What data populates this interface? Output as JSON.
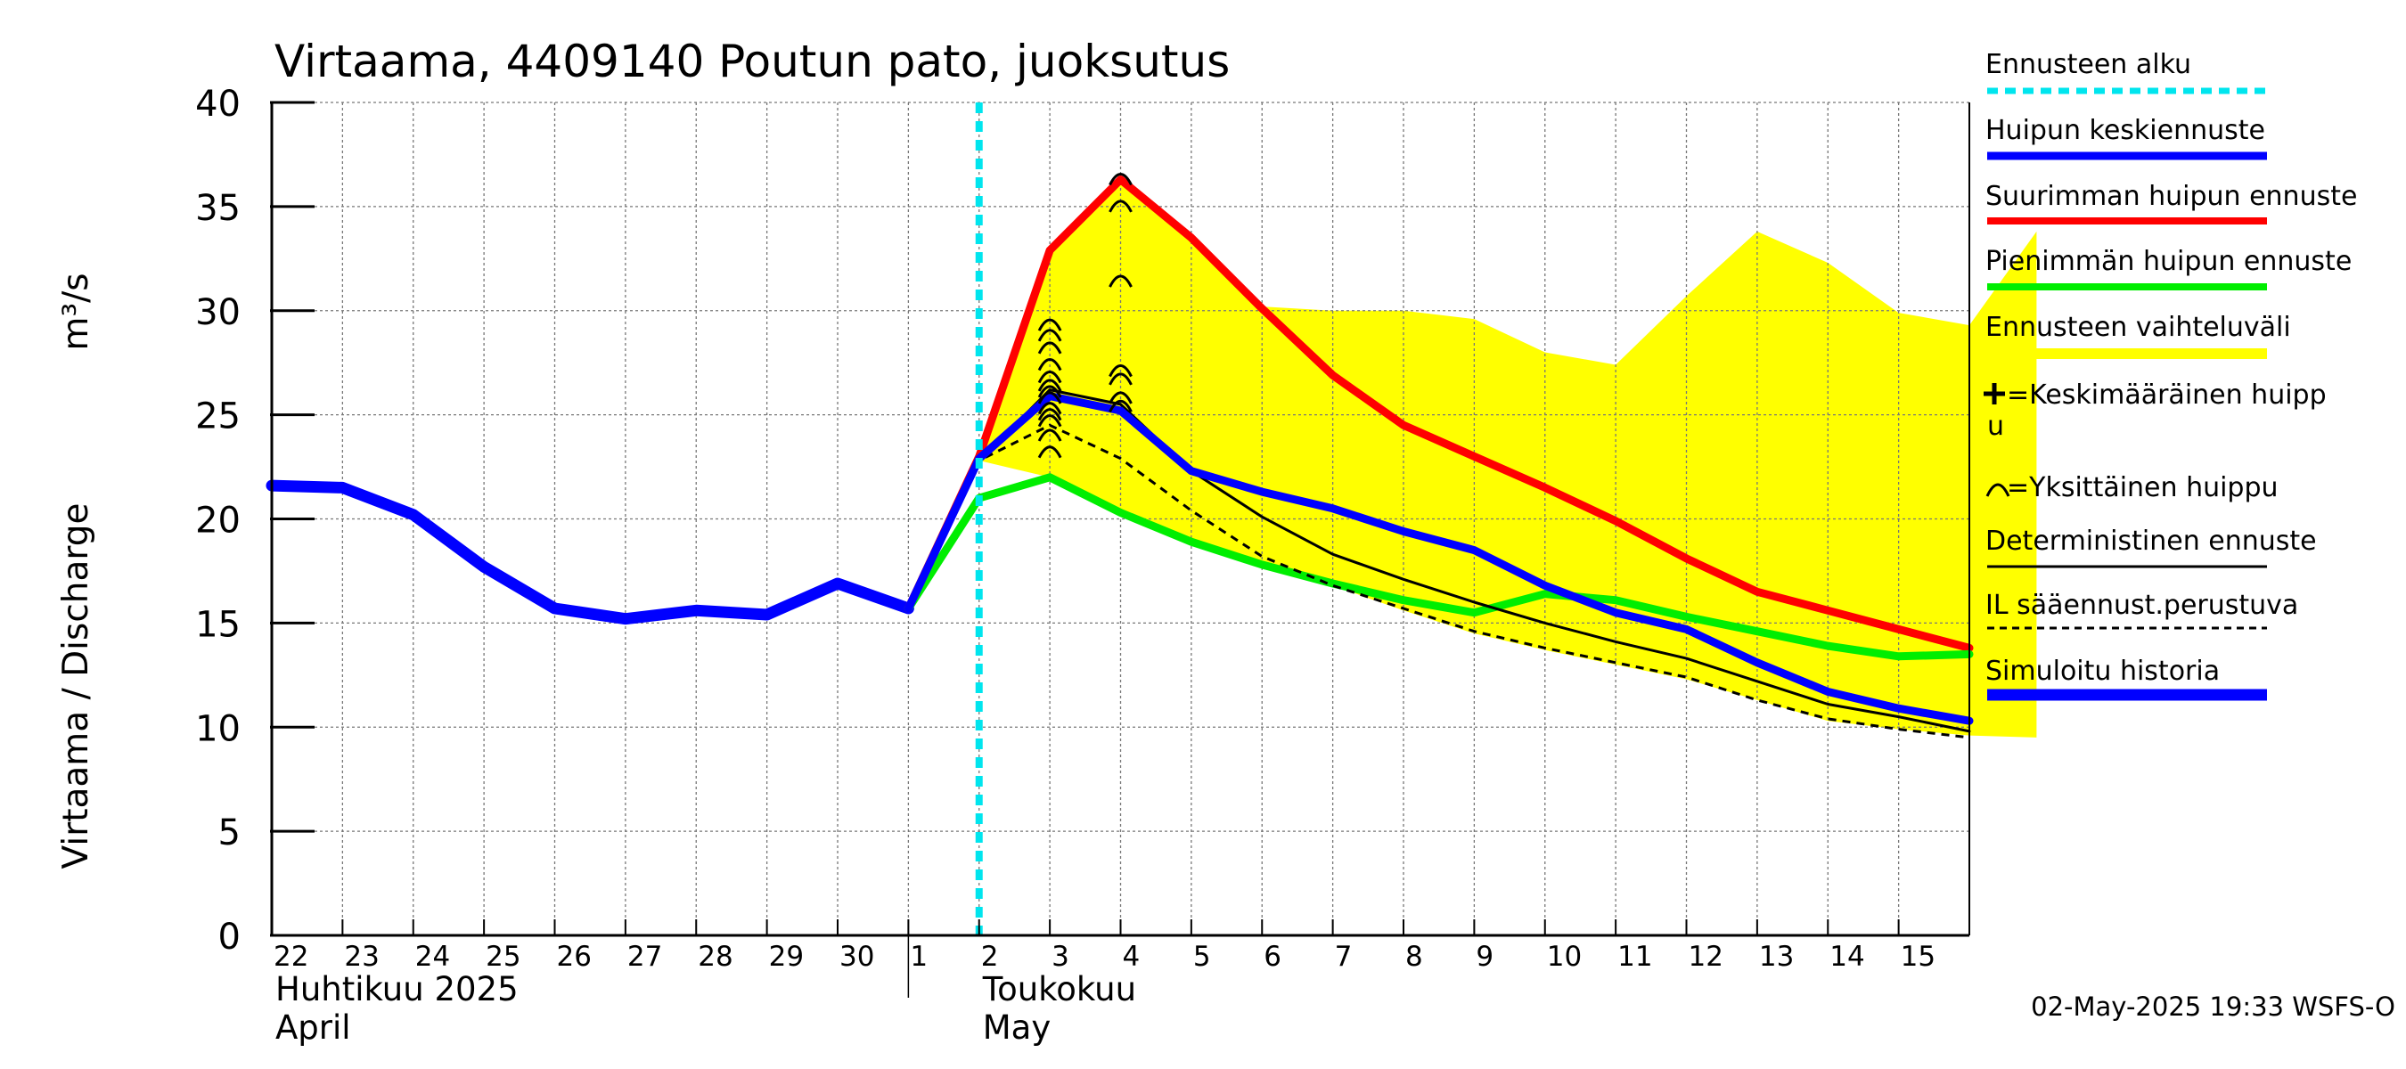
{
  "chart_data": {
    "type": "line",
    "title": "Virtaama, 4409140 Poutun pato, juoksutus",
    "ylabel": "Virtaama / Discharge",
    "yunit": "m³/s",
    "ylim": [
      0,
      40
    ],
    "yticks": [
      0,
      5,
      10,
      15,
      20,
      25,
      30,
      35,
      40
    ],
    "xlim": [
      0,
      24
    ],
    "grid": true,
    "day_labels": [
      "22",
      "23",
      "24",
      "25",
      "26",
      "27",
      "28",
      "29",
      "30",
      "1",
      "2",
      "3",
      "4",
      "5",
      "6",
      "7",
      "8",
      "9",
      "10",
      "11",
      "12",
      "13",
      "14",
      "15"
    ],
    "month_labels": [
      {
        "fi": "Huhtikuu  2025",
        "en": "April",
        "x": 0
      },
      {
        "fi": "Toukokuu",
        "en": "May",
        "x": 10
      }
    ],
    "forecast_start_x": 10.0,
    "band": {
      "name": "Ennusteen vaihteluväli",
      "color": "#ffff00",
      "upper": [
        [
          10,
          22.8
        ],
        [
          11,
          32.9
        ],
        [
          12,
          36.3
        ],
        [
          13,
          33.6
        ],
        [
          14,
          30.2
        ],
        [
          15,
          30.0
        ],
        [
          16,
          30.0
        ],
        [
          17,
          29.6
        ],
        [
          18,
          28.0
        ],
        [
          19,
          27.4
        ],
        [
          20,
          30.7
        ],
        [
          21,
          33.8
        ],
        [
          22,
          32.3
        ],
        [
          23,
          29.9
        ],
        [
          24,
          29.3
        ],
        [
          24.95,
          33.8
        ]
      ],
      "lower": [
        [
          10,
          22.8
        ],
        [
          11,
          22.0
        ],
        [
          12,
          20.2
        ],
        [
          13,
          18.8
        ],
        [
          14,
          17.8
        ],
        [
          15,
          16.8
        ],
        [
          16,
          15.6
        ],
        [
          17,
          14.5
        ],
        [
          18,
          13.7
        ],
        [
          19,
          13.0
        ],
        [
          20,
          12.3
        ],
        [
          21,
          11.3
        ],
        [
          22,
          10.3
        ],
        [
          23,
          9.9
        ],
        [
          24,
          9.6
        ],
        [
          24.95,
          9.5
        ]
      ]
    },
    "series": [
      {
        "name": "Simuloitu historia",
        "color": "#0000ff",
        "width": 13,
        "points": [
          [
            0,
            21.6
          ],
          [
            1,
            21.5
          ],
          [
            2,
            20.2
          ],
          [
            3,
            17.7
          ],
          [
            4,
            15.7
          ],
          [
            5,
            15.2
          ],
          [
            6,
            15.6
          ],
          [
            7,
            15.4
          ],
          [
            8,
            16.9
          ],
          [
            9,
            15.7
          ]
        ]
      },
      {
        "name": "Suurimman huipun ennuste",
        "color": "#ff0000",
        "width": 9,
        "points": [
          [
            9,
            15.7
          ],
          [
            10,
            23.0
          ],
          [
            11,
            32.9
          ],
          [
            12,
            36.3
          ],
          [
            13,
            33.5
          ],
          [
            14,
            30.1
          ],
          [
            15,
            26.9
          ],
          [
            16,
            24.5
          ],
          [
            17,
            23.0
          ],
          [
            18,
            21.5
          ],
          [
            19,
            19.9
          ],
          [
            20,
            18.1
          ],
          [
            21,
            16.5
          ],
          [
            22,
            15.6
          ],
          [
            23,
            14.7
          ],
          [
            24,
            13.8
          ]
        ]
      },
      {
        "name": "Pienimmän huipun ennuste",
        "color": "#00ee00",
        "width": 9,
        "points": [
          [
            9,
            15.7
          ],
          [
            10,
            21.0
          ],
          [
            11,
            22.0
          ],
          [
            12,
            20.3
          ],
          [
            13,
            18.9
          ],
          [
            14,
            17.8
          ],
          [
            15,
            16.9
          ],
          [
            16,
            16.1
          ],
          [
            17,
            15.5
          ],
          [
            18,
            16.4
          ],
          [
            19,
            16.1
          ],
          [
            20,
            15.3
          ],
          [
            21,
            14.6
          ],
          [
            22,
            13.9
          ],
          [
            23,
            13.4
          ],
          [
            24,
            13.5
          ]
        ]
      },
      {
        "name": "IL sääennust.perustuva",
        "color": "#000000",
        "width": 3,
        "dash": "9,7",
        "points": [
          [
            9,
            15.7
          ],
          [
            10,
            22.8
          ],
          [
            11,
            24.5
          ],
          [
            12,
            22.9
          ],
          [
            13,
            20.4
          ],
          [
            14,
            18.2
          ],
          [
            15,
            16.8
          ],
          [
            16,
            15.7
          ],
          [
            17,
            14.6
          ],
          [
            18,
            13.8
          ],
          [
            19,
            13.1
          ],
          [
            20,
            12.4
          ],
          [
            21,
            11.3
          ],
          [
            22,
            10.4
          ],
          [
            23,
            9.9
          ],
          [
            24,
            9.5
          ]
        ]
      },
      {
        "name": "Deterministinen ennuste",
        "color": "#000000",
        "width": 3,
        "points": [
          [
            9,
            15.7
          ],
          [
            10,
            22.8
          ],
          [
            11,
            26.2
          ],
          [
            12,
            25.5
          ],
          [
            13,
            22.3
          ],
          [
            14,
            20.1
          ],
          [
            15,
            18.3
          ],
          [
            16,
            17.1
          ],
          [
            17,
            16.0
          ],
          [
            18,
            15.0
          ],
          [
            19,
            14.1
          ],
          [
            20,
            13.3
          ],
          [
            21,
            12.2
          ],
          [
            22,
            11.1
          ],
          [
            23,
            10.5
          ],
          [
            24,
            9.8
          ]
        ]
      },
      {
        "name": "Huipun keskiennuste",
        "color": "#0000ff",
        "width": 9,
        "points": [
          [
            9,
            15.7
          ],
          [
            10,
            22.9
          ],
          [
            11,
            25.9
          ],
          [
            12,
            25.2
          ],
          [
            13,
            22.3
          ],
          [
            14,
            21.3
          ],
          [
            15,
            20.5
          ],
          [
            16,
            19.4
          ],
          [
            17,
            18.5
          ],
          [
            18,
            16.8
          ],
          [
            19,
            15.5
          ],
          [
            20,
            14.7
          ],
          [
            21,
            13.1
          ],
          [
            22,
            11.7
          ],
          [
            23,
            10.9
          ],
          [
            24,
            10.3
          ]
        ]
      }
    ],
    "peaks": [
      {
        "x": 11,
        "values": [
          23.2,
          24.0,
          24.7,
          25.0,
          25.3,
          25.8,
          26.1,
          26.4,
          26.8,
          27.4,
          28.2,
          28.8,
          29.3
        ]
      },
      {
        "x": 12,
        "values": [
          25.4,
          25.8,
          26.7,
          27.1,
          31.4,
          35.0,
          36.3
        ]
      }
    ],
    "legend": {
      "position": "right",
      "items": [
        {
          "label": "Ennusteen alku",
          "color": "#00e5ee",
          "style": "dotted",
          "width": 7
        },
        {
          "label": "Huipun keskiennuste",
          "color": "#0000ff",
          "style": "solid",
          "width": 9
        },
        {
          "label": "Suurimman huipun ennuste",
          "color": "#ff0000",
          "style": "solid",
          "width": 8
        },
        {
          "label": "Pienimmän huipun ennuste",
          "color": "#00ee00",
          "style": "solid",
          "width": 8
        },
        {
          "label": "Ennusteen vaihteluväli",
          "color": "#ffff00",
          "style": "solid",
          "width": 12
        },
        {
          "label": "=Keskimääräinen huipp",
          "label2": "u",
          "color": "#000000",
          "style": "marker-plus"
        },
        {
          "label": "=Yksittäinen huippu",
          "color": "#000000",
          "style": "marker-arc"
        },
        {
          "label": "Deterministinen ennuste",
          "color": "#000000",
          "style": "solid",
          "width": 3
        },
        {
          "label": "IL sääennust.perustuva",
          "color": "#000000",
          "style": "dashed",
          "width": 3
        },
        {
          "label": "Simuloitu historia",
          "color": "#0000ff",
          "style": "solid",
          "width": 13
        }
      ]
    },
    "timestamp": "02-May-2025 19:33 WSFS-O"
  }
}
